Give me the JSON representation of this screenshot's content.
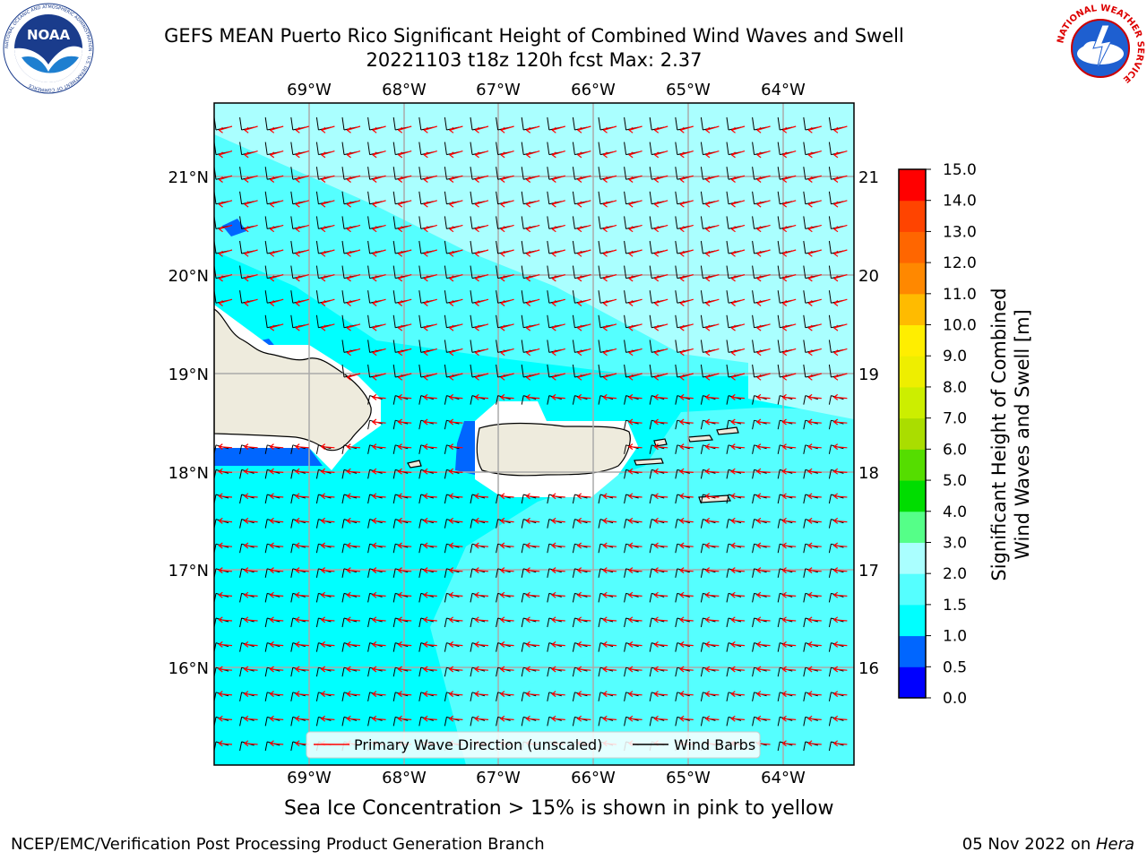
{
  "header": {
    "title_line1": "GEFS MEAN Puerto Rico Significant Height of Combined Wind Waves and Swell",
    "title_line2": "20221103 t18z 120h fcst   Max: 2.37"
  },
  "logos": {
    "left": "NOAA",
    "left_ring_text": "NATIONAL OCEANIC AND ATMOSPHERIC ADMINISTRATION · U.S. DEPARTMENT OF COMMERCE",
    "right_ring_text": "NATIONAL WEATHER SERVICE"
  },
  "map": {
    "lon_labels": [
      "69°W",
      "68°W",
      "67°W",
      "66°W",
      "65°W",
      "64°W"
    ],
    "lat_labels": [
      "21°N",
      "20°N",
      "19°N",
      "18°N",
      "17°N",
      "16°N"
    ],
    "legend": {
      "wave_direction": "Primary Wave Direction (unscaled)",
      "wind_barbs": "Wind Barbs"
    },
    "colors": {
      "ocean_dark": "#00ffff",
      "ocean_mid": "#55ffff",
      "ocean_light": "#aaffff",
      "shallow_blue": "#0066ff",
      "land": "#eeebdd",
      "arrow": "#ff0000",
      "barb": "#000000"
    }
  },
  "colorbar": {
    "title_line1": "Significant Height of Combined",
    "title_line2": "Wind Waves and Swell [m]",
    "levels": [
      "0.0",
      "0.5",
      "1.0",
      "1.5",
      "2.0",
      "3.0",
      "4.0",
      "5.0",
      "6.0",
      "7.0",
      "8.0",
      "9.0",
      "10.0",
      "11.0",
      "12.0",
      "13.0",
      "14.0",
      "15.0"
    ],
    "colors": [
      "#0000ff",
      "#0066ff",
      "#00ffff",
      "#55ffff",
      "#aaffff",
      "#55ff88",
      "#00dd00",
      "#55dd00",
      "#aadd00",
      "#ccee00",
      "#eeee00",
      "#ffee00",
      "#ffbb00",
      "#ff8800",
      "#ff6600",
      "#ff4400",
      "#ff0000"
    ]
  },
  "notes": {
    "sea_ice": "Sea Ice Concentration > 15% is shown in pink to yellow",
    "footer_left": "NCEP/EMC/Verification Post Processing Product Generation Branch",
    "footer_date": "05 Nov 2022 on ",
    "footer_host": "Hera"
  }
}
